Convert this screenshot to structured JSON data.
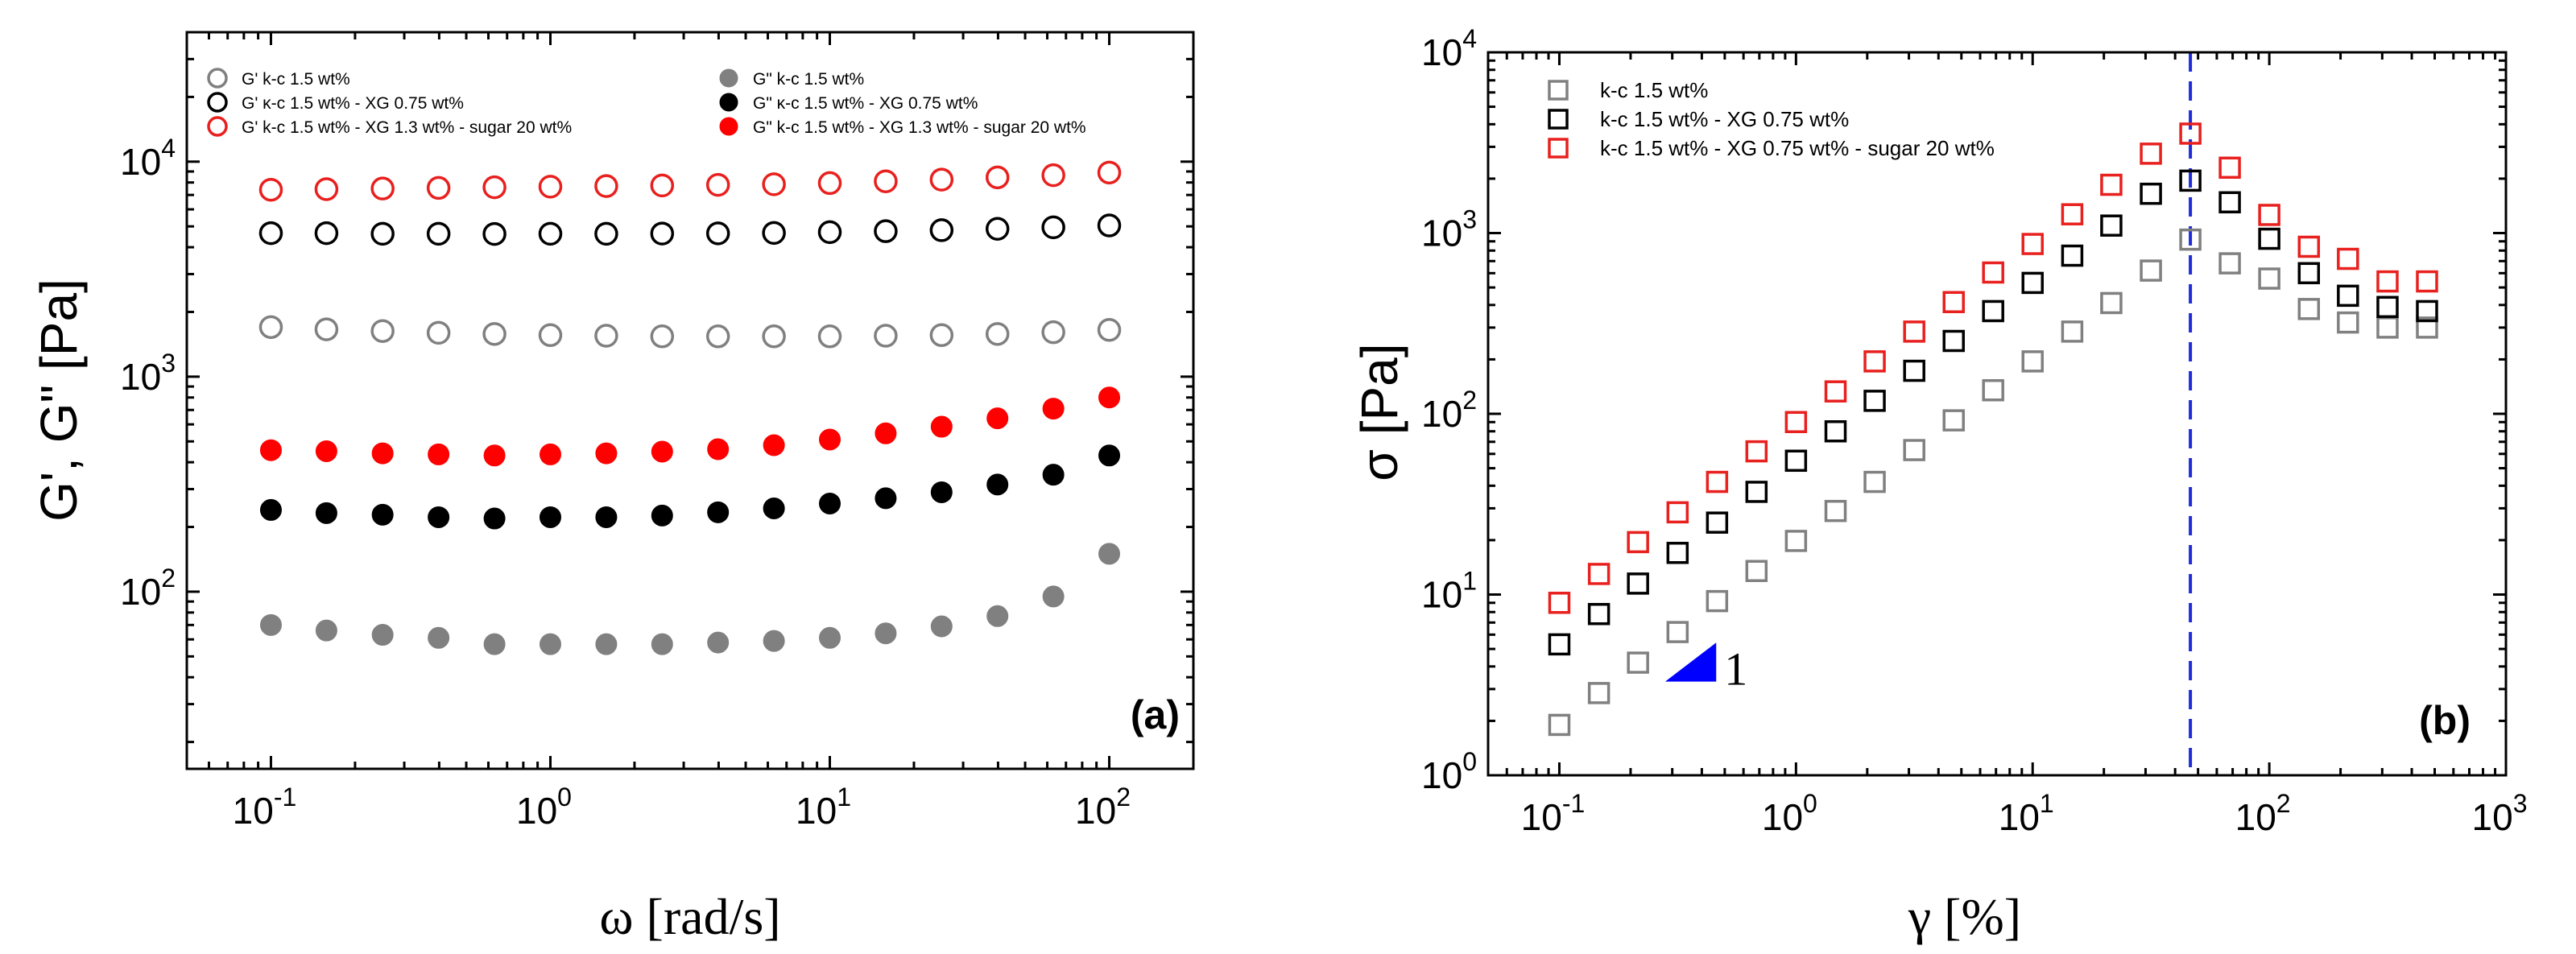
{
  "chart_data": [
    {
      "type": "scatter",
      "panel_label": "(a)",
      "xlabel": "ω [rad/s]",
      "ylabel": "G', G\" [Pa]",
      "xscale": "log",
      "yscale": "log",
      "xlim": [
        0.05,
        200
      ],
      "ylim": [
        15,
        40000
      ],
      "xticks": [
        {
          "value": 0.1,
          "base": "10",
          "exp": "-1"
        },
        {
          "value": 1,
          "base": "10",
          "exp": "0"
        },
        {
          "value": 10,
          "base": "10",
          "exp": "1"
        },
        {
          "value": 100,
          "base": "10",
          "exp": "2"
        }
      ],
      "yticks": [
        {
          "value": 100,
          "base": "10",
          "exp": "2"
        },
        {
          "value": 1000,
          "base": "10",
          "exp": "3"
        },
        {
          "value": 10000,
          "base": "10",
          "exp": "4"
        }
      ],
      "legend_position": "top",
      "x": [
        0.1,
        0.158,
        0.251,
        0.398,
        0.631,
        1.0,
        1.585,
        2.512,
        3.981,
        6.31,
        10.0,
        15.85,
        25.12,
        39.81,
        63.1,
        100.0
      ],
      "series": [
        {
          "name": "G' k-c 1.5 wt%",
          "color": "#808080",
          "marker": "open-circle",
          "values": [
            1700,
            1660,
            1630,
            1600,
            1580,
            1560,
            1550,
            1540,
            1540,
            1540,
            1540,
            1550,
            1560,
            1580,
            1610,
            1650
          ]
        },
        {
          "name": "G' κ-c 1.5 wt% - XG 0.75 wt%",
          "color": "#000000",
          "marker": "open-circle",
          "values": [
            4650,
            4650,
            4620,
            4620,
            4610,
            4620,
            4620,
            4630,
            4640,
            4660,
            4700,
            4750,
            4800,
            4870,
            4950,
            5050
          ]
        },
        {
          "name": "G' k-c 1.5 wt% - XG 1.3 wt% - sugar 20 wt%",
          "color": "#e8201e",
          "marker": "open-circle",
          "values": [
            7400,
            7450,
            7500,
            7550,
            7600,
            7650,
            7700,
            7750,
            7800,
            7850,
            7950,
            8100,
            8250,
            8450,
            8650,
            8900
          ]
        },
        {
          "name": "G\" k-c 1.5 wt%",
          "color": "#808080",
          "marker": "filled-circle",
          "values": [
            70,
            66,
            63,
            61,
            57,
            57,
            57,
            57,
            58,
            59,
            61,
            64,
            69,
            77,
            95,
            150
          ]
        },
        {
          "name": "G\" κ-c 1.5 wt% - XG 0.75 wt%",
          "color": "#000000",
          "marker": "filled-circle",
          "values": [
            240,
            232,
            228,
            222,
            219,
            222,
            222,
            226,
            234,
            244,
            257,
            272,
            290,
            315,
            350,
            430
          ]
        },
        {
          "name": "G\" k-c 1.5 wt% - XG 1.3 wt% - sugar 20 wt%",
          "color": "#ff0000",
          "marker": "filled-circle",
          "values": [
            455,
            450,
            440,
            435,
            430,
            435,
            440,
            448,
            460,
            480,
            510,
            545,
            585,
            640,
            710,
            800
          ]
        }
      ]
    },
    {
      "type": "scatter",
      "panel_label": "(b)",
      "xlabel": "γ [%]",
      "ylabel": "σ  [Pa]",
      "xscale": "log",
      "yscale": "log",
      "xlim": [
        0.05,
        1000
      ],
      "ylim": [
        1,
        10000
      ],
      "xticks": [
        {
          "value": 0.1,
          "base": "10",
          "exp": "-1"
        },
        {
          "value": 1,
          "base": "10",
          "exp": "0"
        },
        {
          "value": 10,
          "base": "10",
          "exp": "1"
        },
        {
          "value": 100,
          "base": "10",
          "exp": "2"
        },
        {
          "value": 1000,
          "base": "10",
          "exp": "3"
        }
      ],
      "yticks": [
        {
          "value": 1,
          "base": "10",
          "exp": "0"
        },
        {
          "value": 10,
          "base": "10",
          "exp": "1"
        },
        {
          "value": 100,
          "base": "10",
          "exp": "2"
        },
        {
          "value": 1000,
          "base": "10",
          "exp": "3"
        },
        {
          "value": 10000,
          "base": "10",
          "exp": "4"
        }
      ],
      "legend_position": "top-left",
      "x": [
        0.1,
        0.147,
        0.215,
        0.316,
        0.464,
        0.681,
        1.0,
        1.47,
        2.15,
        3.16,
        4.64,
        6.81,
        10.0,
        14.7,
        21.5,
        31.6,
        46.4,
        68.1,
        100.0,
        147,
        215,
        316,
        464
      ],
      "series": [
        {
          "name": "k-c 1.5 wt%",
          "color": "#808080",
          "marker": "open-square",
          "values": [
            1.9,
            2.85,
            4.2,
            6.2,
            9.2,
            13.5,
            19.8,
            29,
            42,
            63,
            92,
            135,
            195,
            285,
            410,
            620,
            920,
            680,
            560,
            380,
            320,
            300,
            300
          ]
        },
        {
          "name": "k-c 1.5 wt% - XG 0.75 wt%",
          "color": "#000000",
          "marker": "open-square",
          "values": [
            5.3,
            7.8,
            11.5,
            17,
            25,
            37,
            55,
            80,
            118,
            173,
            253,
            370,
            530,
            750,
            1100,
            1650,
            1950,
            1480,
            930,
            600,
            450,
            390,
            370
          ]
        },
        {
          "name": "k-c 1.5 wt% - XG 0.75 wt% - sugar 20 wt%",
          "color": "#e8201e",
          "marker": "open-square",
          "values": [
            9,
            13,
            19.5,
            28.5,
            42,
            62,
            90,
            133,
            195,
            285,
            415,
            605,
            870,
            1270,
            1850,
            2750,
            3550,
            2300,
            1260,
            840,
            720,
            540,
            540
          ]
        }
      ],
      "annotations": {
        "vline_x": 46.4,
        "vline_color": "#1e2cd8",
        "slope_label": "1",
        "slope_color": "#0000ff"
      }
    }
  ]
}
